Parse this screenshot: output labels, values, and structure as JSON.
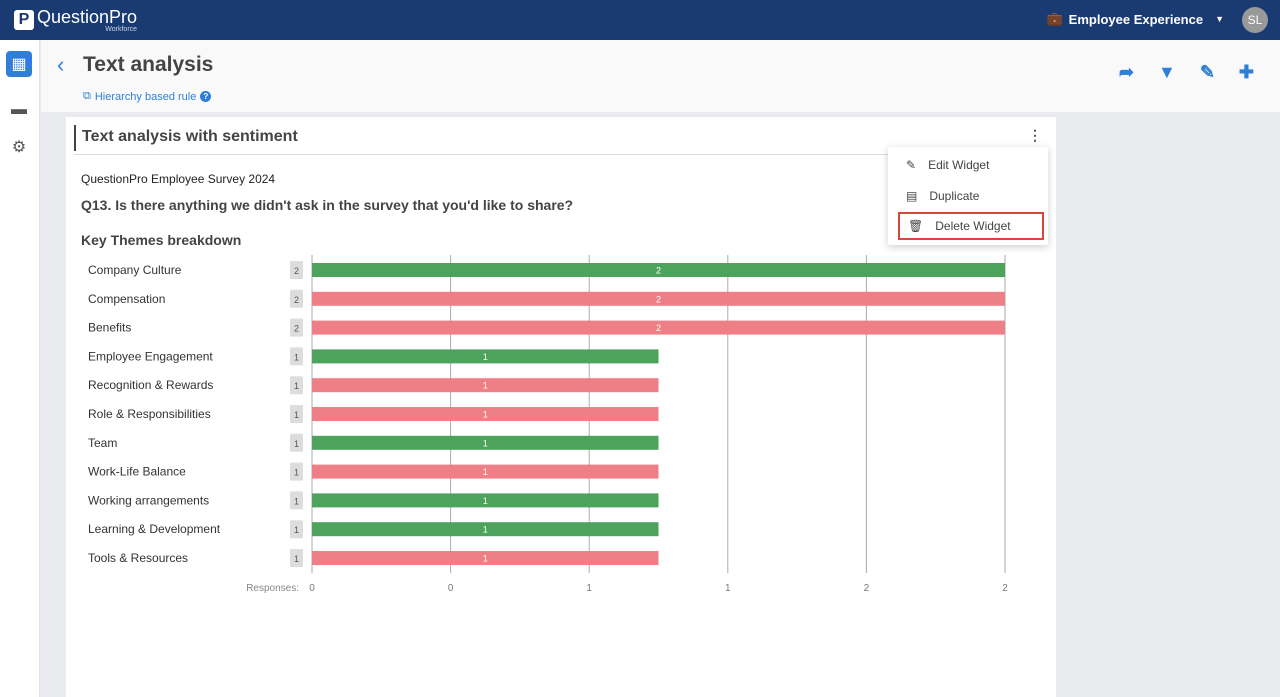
{
  "topbar": {
    "logo": "QuestionPro",
    "logo_sub": "Workforce",
    "product": "Employee Experience",
    "avatar": "SL"
  },
  "header": {
    "title": "Text analysis",
    "rule": "Hierarchy based rule"
  },
  "widget": {
    "title": "Text analysis with sentiment",
    "survey": "QuestionPro Employee Survey 2024",
    "question": "Q13. Is there anything we didn't ask in the survey that you'd like to share?",
    "section": "Key Themes breakdown"
  },
  "menu": {
    "items": [
      {
        "label": "Edit Widget",
        "icon": "pencil-icon"
      },
      {
        "label": "Duplicate",
        "icon": "duplicate-icon"
      },
      {
        "label": "Delete Widget",
        "icon": "trash-icon"
      }
    ]
  },
  "colors": {
    "positive": "#4ea35c",
    "negative": "#ee7f86",
    "accent": "#2f7fd6"
  },
  "chart_data": {
    "type": "bar",
    "orientation": "horizontal",
    "title": "Key Themes breakdown",
    "xlabel": "Responses:",
    "xlim": [
      0,
      2
    ],
    "x_tick_labels": [
      "0",
      "0",
      "1",
      "1",
      "2",
      "2"
    ],
    "categories": [
      "Company Culture",
      "Compensation",
      "Benefits",
      "Employee Engagement",
      "Recognition & Rewards",
      "Role & Responsibilities",
      "Team",
      "Work-Life Balance",
      "Working arrangements",
      "Learning & Development",
      "Tools & Resources"
    ],
    "values": [
      2,
      2,
      2,
      1,
      1,
      1,
      1,
      1,
      1,
      1,
      1
    ],
    "sentiment": [
      "positive",
      "negative",
      "negative",
      "positive",
      "negative",
      "negative",
      "positive",
      "negative",
      "positive",
      "positive",
      "negative"
    ]
  }
}
